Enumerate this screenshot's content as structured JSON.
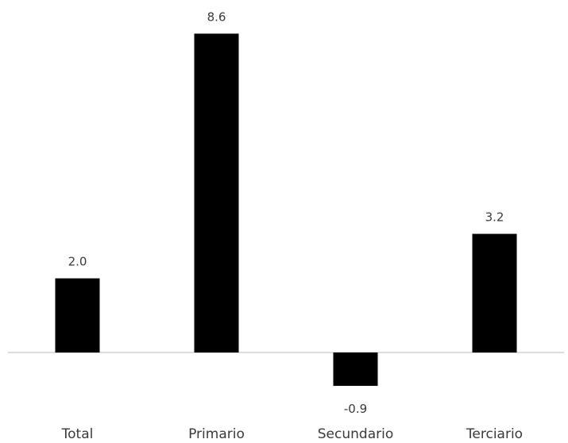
{
  "chart_data": {
    "type": "bar",
    "categories": [
      "Total",
      "Primario",
      "Secundario",
      "Terciario"
    ],
    "values": [
      2.0,
      8.6,
      -0.9,
      3.2
    ],
    "value_labels": [
      "2.0",
      "8.6",
      "-0.9",
      "3.2"
    ],
    "title": "",
    "xlabel": "",
    "ylabel": "",
    "ylim": [
      -1,
      9
    ],
    "grid": false,
    "legend": "none",
    "colors": {
      "bar": "#000000",
      "text": "#3a3a3a",
      "axis": "#d0d0d0"
    }
  }
}
